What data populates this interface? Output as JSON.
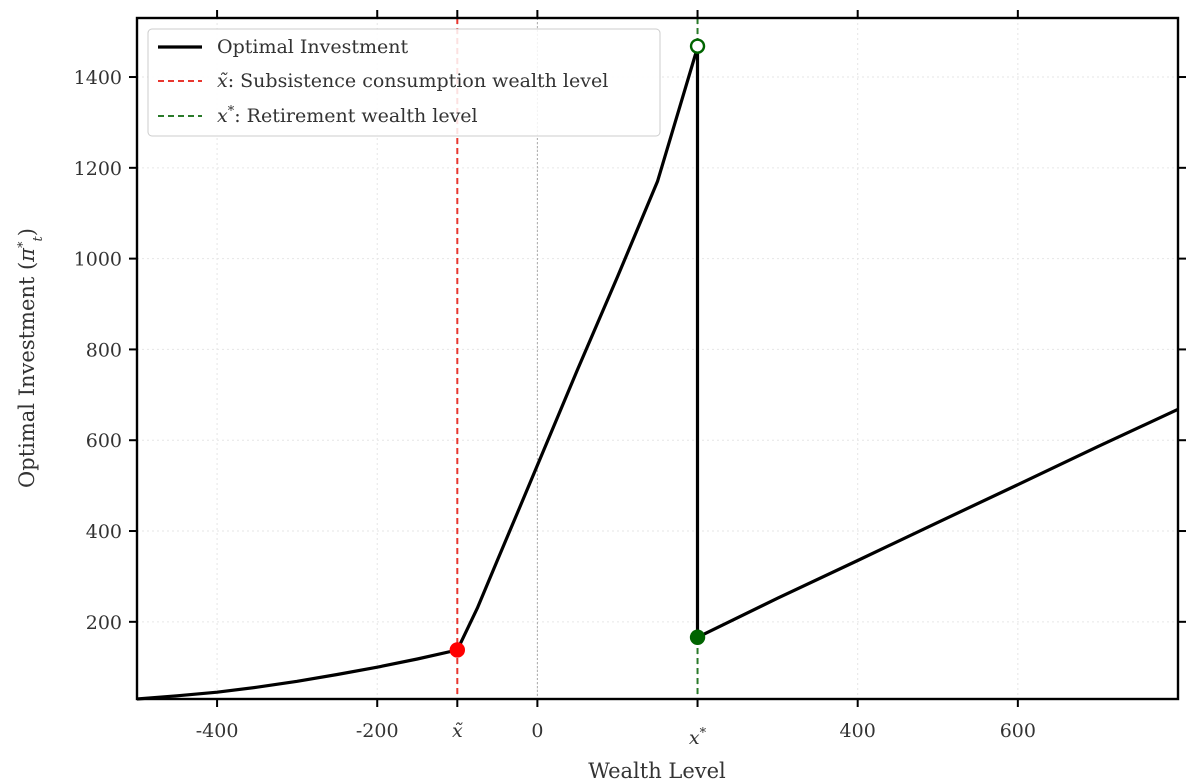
{
  "chart_data": {
    "type": "line",
    "xlabel": "Wealth Level",
    "ylabel_main": "Optimal Investment (",
    "ylabel_symbol": "π",
    "ylabel_sup": "*",
    "ylabel_sub": "t",
    "ylabel_close": ")",
    "xlim": [
      -500,
      800
    ],
    "ylim": [
      30,
      1530
    ],
    "x_ticks": [
      {
        "value": -400,
        "label": "-400"
      },
      {
        "value": -200,
        "label": "-200"
      },
      {
        "value": -100,
        "label": "x̃"
      },
      {
        "value": 0,
        "label": "0"
      },
      {
        "value": 200,
        "label": "x*"
      },
      {
        "value": 400,
        "label": "400"
      },
      {
        "value": 600,
        "label": "600"
      }
    ],
    "y_ticks": [
      {
        "value": 200,
        "label": "200"
      },
      {
        "value": 400,
        "label": "400"
      },
      {
        "value": 600,
        "label": "600"
      },
      {
        "value": 800,
        "label": "800"
      },
      {
        "value": 1000,
        "label": "1000"
      },
      {
        "value": 1200,
        "label": "1200"
      },
      {
        "value": 1400,
        "label": "1400"
      }
    ],
    "grid": true,
    "legend_position": "top-left",
    "series": [
      {
        "name": "Optimal Investment",
        "color": "#000000",
        "segments": [
          [
            [
              -500,
              30
            ],
            [
              -450,
              37
            ],
            [
              -400,
              45
            ],
            [
              -350,
              56
            ],
            [
              -300,
              69
            ],
            [
              -250,
              84
            ],
            [
              -200,
              100
            ],
            [
              -150,
              118
            ],
            [
              -100,
              138
            ],
            [
              -75,
              230
            ],
            [
              -50,
              335
            ],
            [
              -25,
              440
            ],
            [
              0,
              545
            ],
            [
              50,
              755
            ],
            [
              100,
              960
            ],
            [
              150,
              1170
            ],
            [
              200,
              1465
            ]
          ],
          [
            [
              200,
              1465
            ],
            [
              200,
              166
            ]
          ],
          [
            [
              200,
              166
            ],
            [
              300,
              252
            ],
            [
              400,
              335
            ],
            [
              500,
              419
            ],
            [
              600,
              502
            ],
            [
              700,
              586
            ],
            [
              800,
              668
            ]
          ]
        ]
      }
    ],
    "reference_lines": [
      {
        "name": "x̃: Subsistence consumption wealth level",
        "symbol": "x̃",
        "rest": ": Subsistence consumption wealth level",
        "x": -100,
        "color": "#e8362f"
      },
      {
        "name": "x*: Retirement wealth level",
        "symbol": "x",
        "sup": "*",
        "rest": ": Retirement wealth level",
        "x": 200,
        "color": "#2a7a2a"
      }
    ],
    "zero_line": {
      "x": 0,
      "color": "#aaaaaa"
    },
    "markers": [
      {
        "x": -100,
        "y": 138,
        "fill": "#ff0000",
        "stroke": "#ff0000",
        "style": "filled"
      },
      {
        "x": 200,
        "y": 1468,
        "fill": "#ffffff",
        "stroke": "#006400",
        "style": "open"
      },
      {
        "x": 200,
        "y": 166,
        "fill": "#006400",
        "stroke": "#006400",
        "style": "filled"
      }
    ],
    "legend_label_main": "Optimal Investment"
  }
}
